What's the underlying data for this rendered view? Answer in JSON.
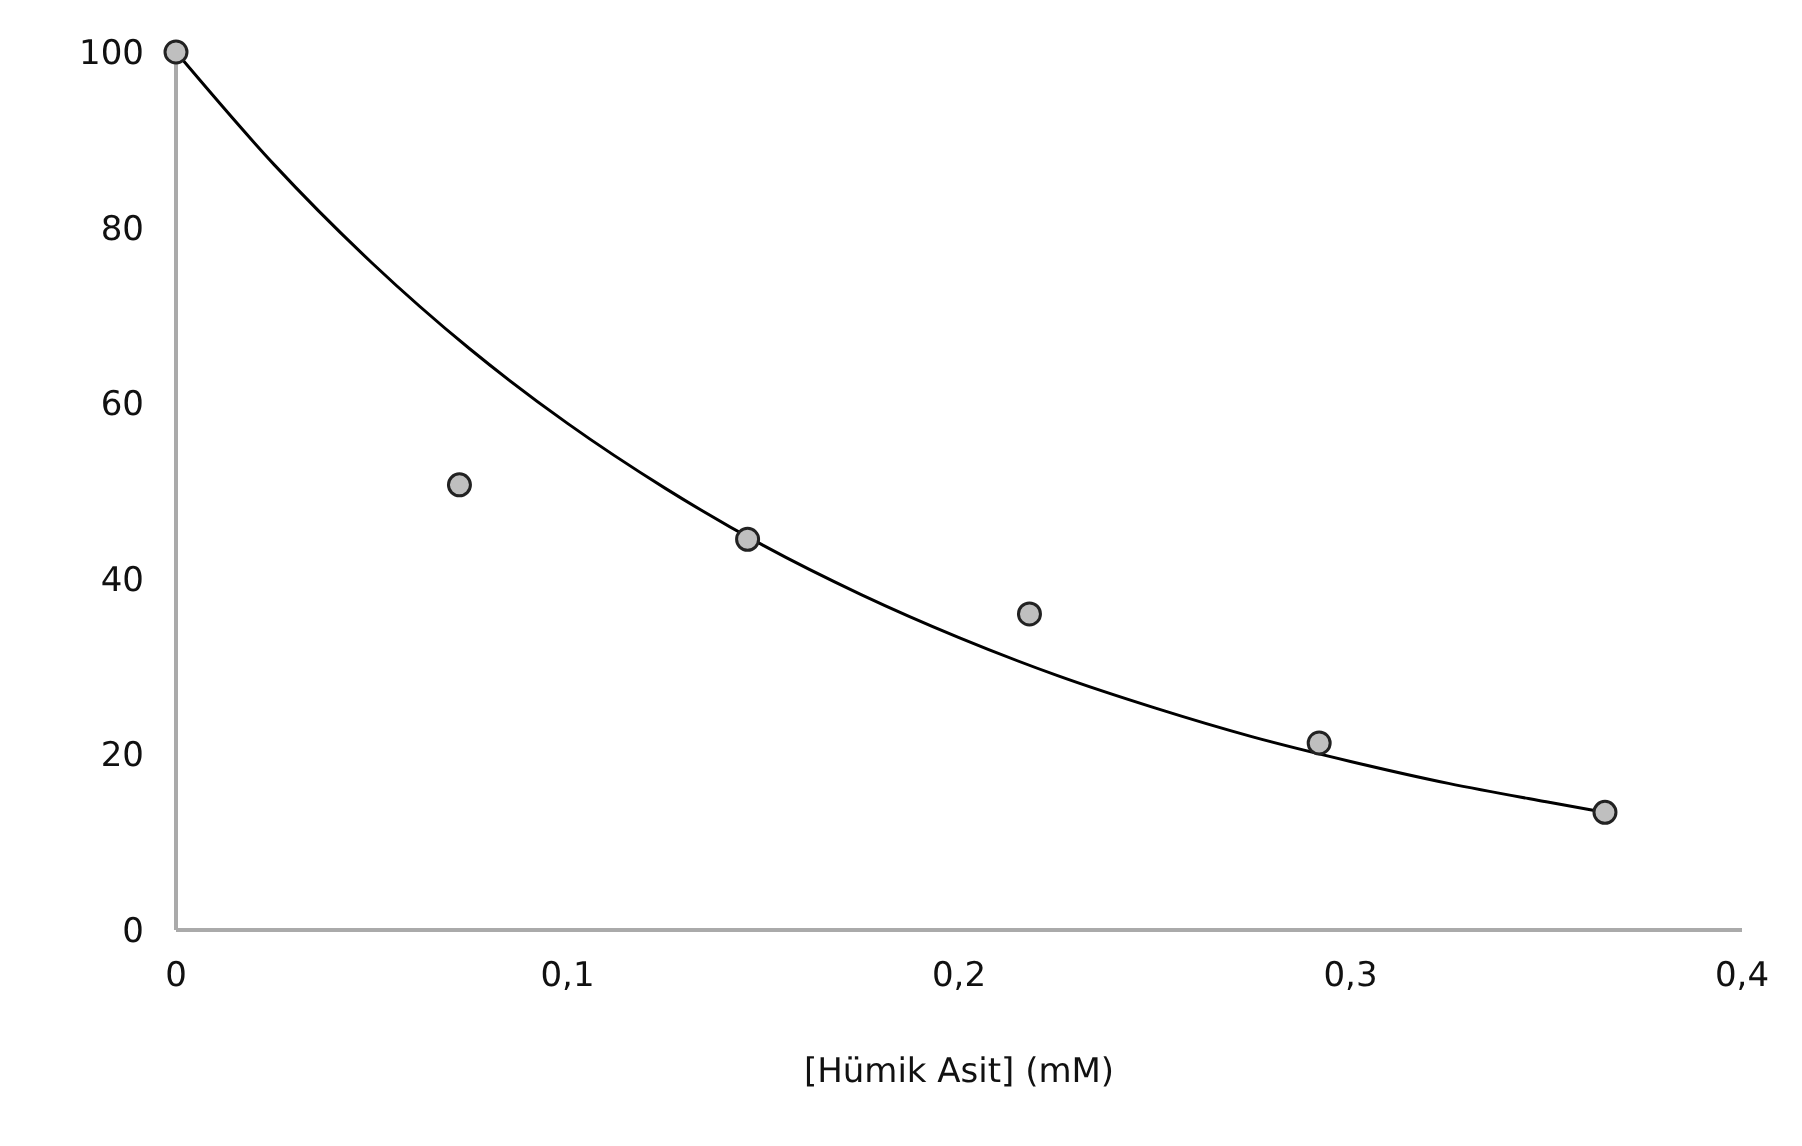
{
  "chart_data": {
    "type": "scatter",
    "xlabel": "[Hümik Asit] (mM)",
    "xlim": [
      0,
      0.4
    ],
    "xticks": [
      0,
      {
        "value": 0.1,
        "label": "0,1"
      },
      {
        "value": 0.2,
        "label": "0,2"
      },
      {
        "value": 0.3,
        "label": "0,3"
      },
      {
        "value": 0.4,
        "label": "0,4"
      }
    ],
    "ylim": [
      0,
      100
    ],
    "yticks": [
      0,
      20,
      40,
      60,
      80,
      100
    ],
    "grid": false,
    "legend": false,
    "marker": "circle",
    "series": [
      {
        "color": "#bfbfbf",
        "x": [
          0,
          0.0724,
          0.146,
          0.218,
          0.292,
          0.365
        ],
        "values": [
          100,
          50.7,
          44.5,
          36.0,
          21.3,
          13.4
        ]
      },
      {
        "type": "line",
        "color": "#000000",
        "marker": "none",
        "x": [
          0,
          0.025,
          0.05,
          0.075,
          0.1,
          0.125,
          0.15,
          0.175,
          0.2,
          0.225,
          0.25,
          0.275,
          0.3,
          0.325,
          0.35,
          0.365
        ],
        "values": [
          100,
          87.2,
          76.0,
          66.2,
          57.7,
          50.3,
          43.8,
          38.2,
          33.3,
          29.0,
          25.3,
          22.0,
          19.2,
          16.7,
          14.6,
          13.4
        ]
      }
    ]
  }
}
